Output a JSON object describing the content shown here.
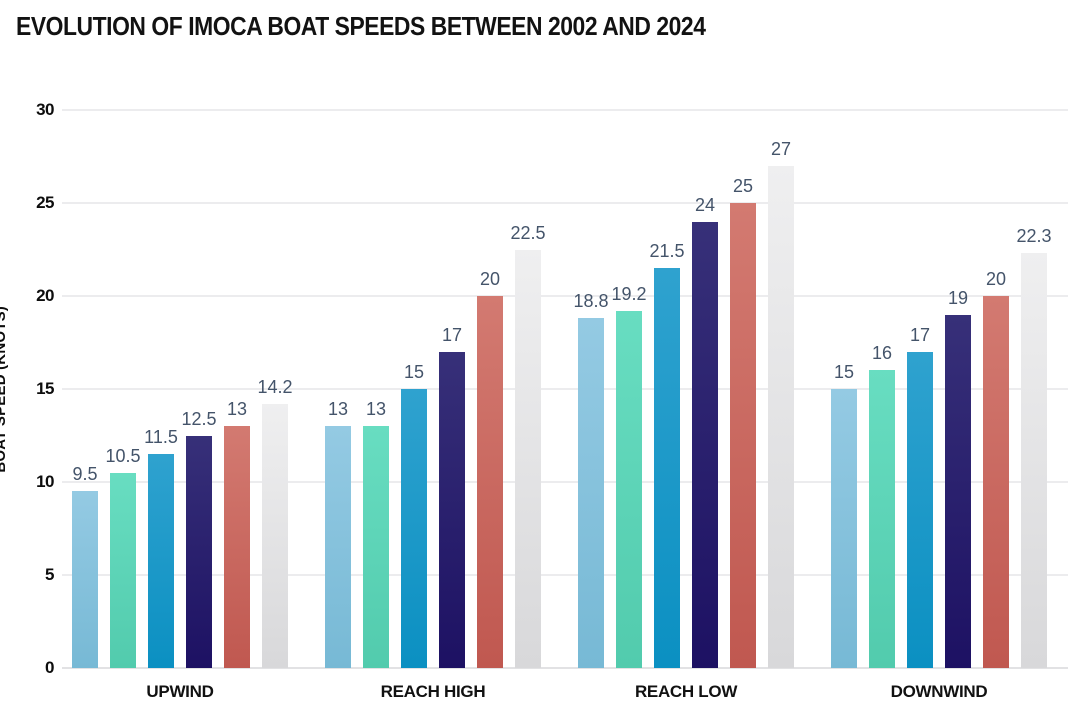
{
  "chart_data": {
    "type": "bar",
    "title": "EVOLUTION OF IMOCA BOAT SPEEDS BETWEEN 2002 AND 2024",
    "xlabel": "",
    "ylabel": "BOAT SPEED (KNOTS)",
    "categories": [
      "UPWIND",
      "REACH HIGH",
      "REACH LOW",
      "DOWNWIND"
    ],
    "series": [
      {
        "color": "#85C2DE",
        "color_top": "#94CAE3",
        "color_bottom": "#77B9D5",
        "values": [
          9.5,
          13,
          18.8,
          15
        ]
      },
      {
        "color": "#5CD4B8",
        "color_top": "#68DDC1",
        "color_bottom": "#52CBAD",
        "values": [
          10.5,
          13,
          19.2,
          16
        ]
      },
      {
        "color": "#1899C9",
        "color_top": "#2FA2CF",
        "color_bottom": "#0B90C2",
        "values": [
          11.5,
          15,
          21.5,
          17
        ]
      },
      {
        "color": "#2A2270",
        "color_top": "#373079",
        "color_bottom": "#1D1163",
        "values": [
          12.5,
          17,
          24,
          19
        ]
      },
      {
        "color": "#C9635B",
        "color_top": "#D37A71",
        "color_bottom": "#C05850",
        "values": [
          13,
          20,
          25,
          20
        ]
      },
      {
        "color": "#E3E3E5",
        "color_top": "#EFEFF0",
        "color_bottom": "#D8D8DA",
        "values": [
          14.2,
          22.5,
          27,
          22.3
        ]
      }
    ],
    "yticks": [
      0,
      5,
      10,
      15,
      20,
      25,
      30
    ],
    "ylim": [
      0,
      30
    ],
    "grid": true,
    "legend_position": "none"
  },
  "style": {
    "background": "#FFFFFF",
    "title_color": "#121212",
    "tick_color": "#0D0D0D",
    "value_label_color": "#44546A",
    "grid_color": "#ECECEE",
    "baseline_color": "#E2E2E4"
  }
}
